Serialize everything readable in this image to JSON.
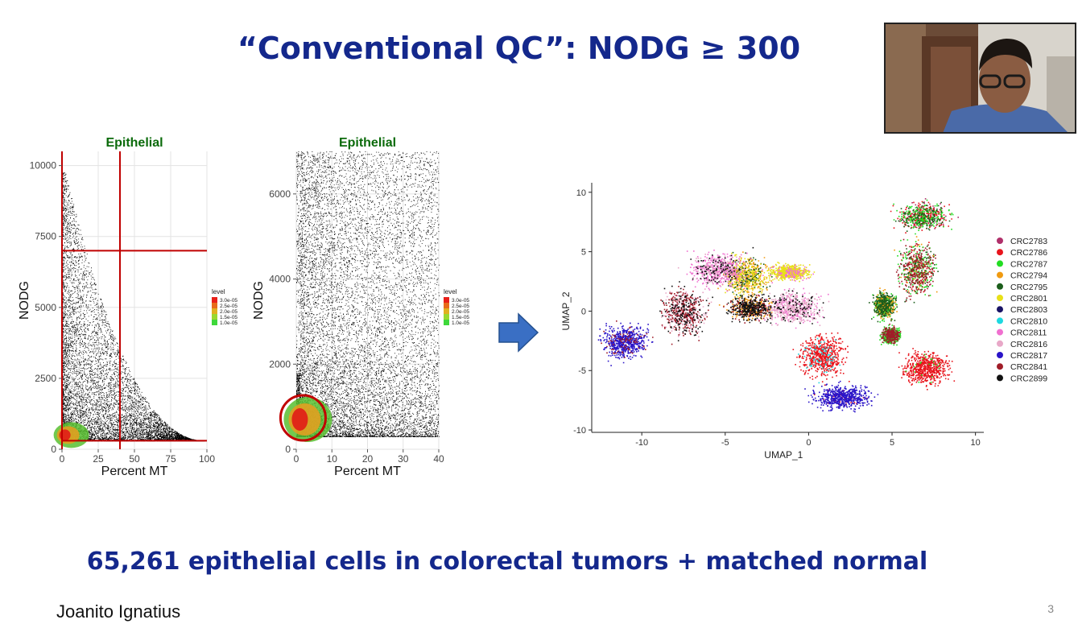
{
  "slide": {
    "title": "“Conventional QC”: NODG ≥ 300",
    "subtitle": "65,261 epithelial cells in colorectal tumors + matched normal",
    "presenter": "Joanito Ignatius",
    "page_number": "3"
  },
  "chart_data": [
    {
      "type": "scatter",
      "title": "Epithelial",
      "xlabel": "Percent MT",
      "ylabel": "NODG",
      "xlim": [
        0,
        100
      ],
      "ylim": [
        0,
        10500
      ],
      "xticks": [
        "0",
        "25",
        "50",
        "75",
        "100"
      ],
      "yticks": [
        "0",
        "2500",
        "5000",
        "7500",
        "10000"
      ],
      "thresholds": {
        "x": [
          0,
          40
        ],
        "y": [
          300,
          7000
        ]
      },
      "legend": {
        "title": "level",
        "entries": [
          "3.0e-05",
          "2.5e-05",
          "2.0e-05",
          "1.5e-05",
          "1.0e-05"
        ],
        "position": "right"
      },
      "grid": true
    },
    {
      "type": "scatter",
      "title": "Epithelial",
      "xlabel": "Percent MT",
      "ylabel": "NODG",
      "xlim": [
        0,
        40
      ],
      "ylim": [
        0,
        7000
      ],
      "xticks": [
        "0",
        "10",
        "20",
        "30",
        "40"
      ],
      "yticks": [
        "0",
        "2000",
        "4000",
        "6000"
      ],
      "highlight": {
        "x": 1,
        "y": 700
      },
      "legend": {
        "title": "level",
        "entries": [
          "3.0e-05",
          "2.5e-05",
          "2.0e-05",
          "1.5e-05",
          "1.0e-05"
        ],
        "position": "right"
      },
      "grid": true
    },
    {
      "type": "scatter",
      "xlabel": "UMAP_1",
      "ylabel": "UMAP_2",
      "xlim": [
        -13,
        10.5
      ],
      "ylim": [
        -10.2,
        10.8
      ],
      "xticks": [
        "-10",
        "-5",
        "0",
        "5",
        "10"
      ],
      "yticks": [
        "-10",
        "-5",
        "0",
        "5",
        "10"
      ],
      "legend_position": "right",
      "series": [
        {
          "name": "CRC2783",
          "color": "#b0306a"
        },
        {
          "name": "CRC2786",
          "color": "#e8141c"
        },
        {
          "name": "CRC2787",
          "color": "#22dd22"
        },
        {
          "name": "CRC2794",
          "color": "#f09a10"
        },
        {
          "name": "CRC2795",
          "color": "#1c5e1c"
        },
        {
          "name": "CRC2801",
          "color": "#e8e018"
        },
        {
          "name": "CRC2803",
          "color": "#1a1466"
        },
        {
          "name": "CRC2810",
          "color": "#1ed8e0"
        },
        {
          "name": "CRC2811",
          "color": "#f070d0"
        },
        {
          "name": "CRC2816",
          "color": "#e8a8c8"
        },
        {
          "name": "CRC2817",
          "color": "#2a14c8"
        },
        {
          "name": "CRC2841",
          "color": "#a01c28"
        },
        {
          "name": "CRC2899",
          "color": "#111111"
        }
      ]
    }
  ],
  "colors": {
    "title": "#14288c",
    "panel_title": "#0a6a0a",
    "threshold": "#c00000",
    "arrow": "#3a6fc4"
  },
  "icons": {
    "arrow": "right-arrow-icon"
  }
}
